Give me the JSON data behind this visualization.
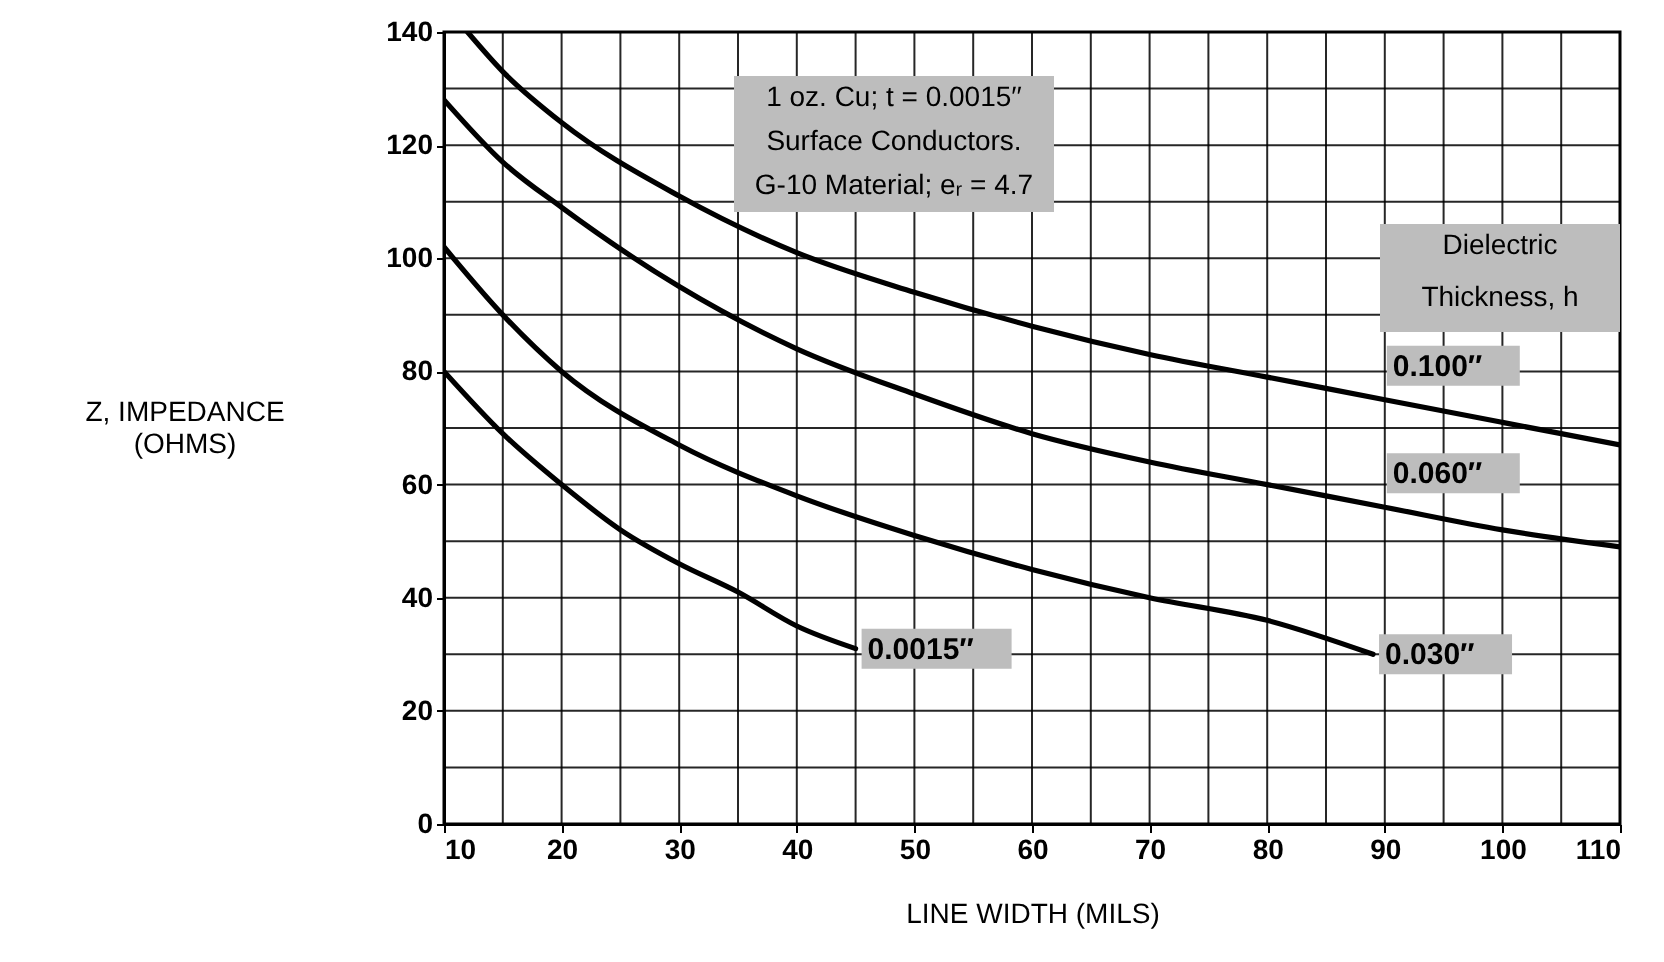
{
  "chart_data": {
    "type": "line",
    "xlabel": "LINE WIDTH (MILS)",
    "ylabel": "Z, IMPEDANCE (OHMS)",
    "legend_title": "Dielectric Thickness, h",
    "annotations": [
      "1 oz. Cu; t = 0.0015′′",
      "Surface Conductors.",
      "G-10 Material; eᵣ = 4.7"
    ],
    "xlim": [
      10,
      110
    ],
    "xticks": [
      10,
      {
        "value": 15,
        "label": null
      },
      20,
      {
        "value": 25,
        "label": null
      },
      30,
      {
        "value": 35,
        "label": null
      },
      40,
      {
        "value": 45,
        "label": null
      },
      50,
      {
        "value": 55,
        "label": null
      },
      60,
      {
        "value": 65,
        "label": null
      },
      70,
      {
        "value": 75,
        "label": null
      },
      80,
      {
        "value": 85,
        "label": null
      },
      90,
      {
        "value": 95,
        "label": null
      },
      100,
      {
        "value": 105,
        "label": null
      },
      110
    ],
    "ylim": [
      0,
      140
    ],
    "yticks": [
      0,
      {
        "value": 10,
        "label": null
      },
      20,
      {
        "value": 30,
        "label": null
      },
      40,
      {
        "value": 50,
        "label": null
      },
      60,
      {
        "value": 70,
        "label": null
      },
      80,
      {
        "value": 90,
        "label": null
      },
      100,
      {
        "value": 110,
        "label": null
      },
      120,
      {
        "value": 130,
        "label": null
      },
      140
    ],
    "grid": true,
    "line_style": "solid",
    "series": [
      {
        "name": "0.100′′",
        "color": "#000000",
        "x": [
          12,
          15,
          20,
          30,
          40,
          50,
          60,
          70,
          80,
          90,
          100,
          110
        ],
        "values": [
          140,
          133,
          124,
          111,
          101,
          94,
          88,
          83,
          79,
          75,
          71,
          67
        ]
      },
      {
        "name": "0.060′′",
        "color": "#000000",
        "x": [
          10,
          15,
          20,
          30,
          40,
          50,
          60,
          70,
          80,
          90,
          100,
          110
        ],
        "values": [
          128,
          117,
          109,
          95,
          84,
          76,
          69,
          64,
          60,
          56,
          52,
          49
        ]
      },
      {
        "name": "0.030′′",
        "color": "#000000",
        "x": [
          10,
          15,
          20,
          30,
          40,
          50,
          60,
          70,
          80,
          89
        ],
        "values": [
          102,
          90,
          80,
          67,
          58,
          51,
          45,
          40,
          36,
          30
        ]
      },
      {
        "name": "0.0015′′",
        "color": "#000000",
        "x": [
          10,
          15,
          20,
          25,
          30,
          35,
          40,
          45
        ],
        "values": [
          80,
          69,
          60,
          52,
          46,
          41,
          35,
          31
        ]
      }
    ]
  }
}
